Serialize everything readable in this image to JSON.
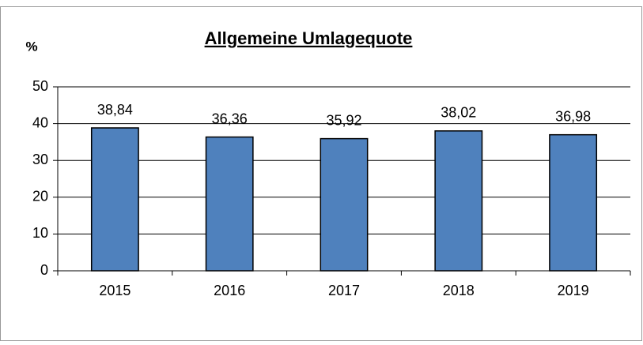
{
  "chart_data": {
    "type": "bar",
    "title": "Allgemeine Umlagequote",
    "y_label": "%",
    "categories": [
      "2015",
      "2016",
      "2017",
      "2018",
      "2019"
    ],
    "values": [
      38.84,
      36.36,
      35.92,
      38.02,
      36.98
    ],
    "value_labels": [
      "38,84",
      "36,36",
      "35,92",
      "38,02",
      "36,98"
    ],
    "color": "#4f81bd",
    "ylim": [
      0,
      50
    ],
    "yticks": [
      0,
      10,
      20,
      30,
      40,
      50
    ],
    "grid": true
  }
}
